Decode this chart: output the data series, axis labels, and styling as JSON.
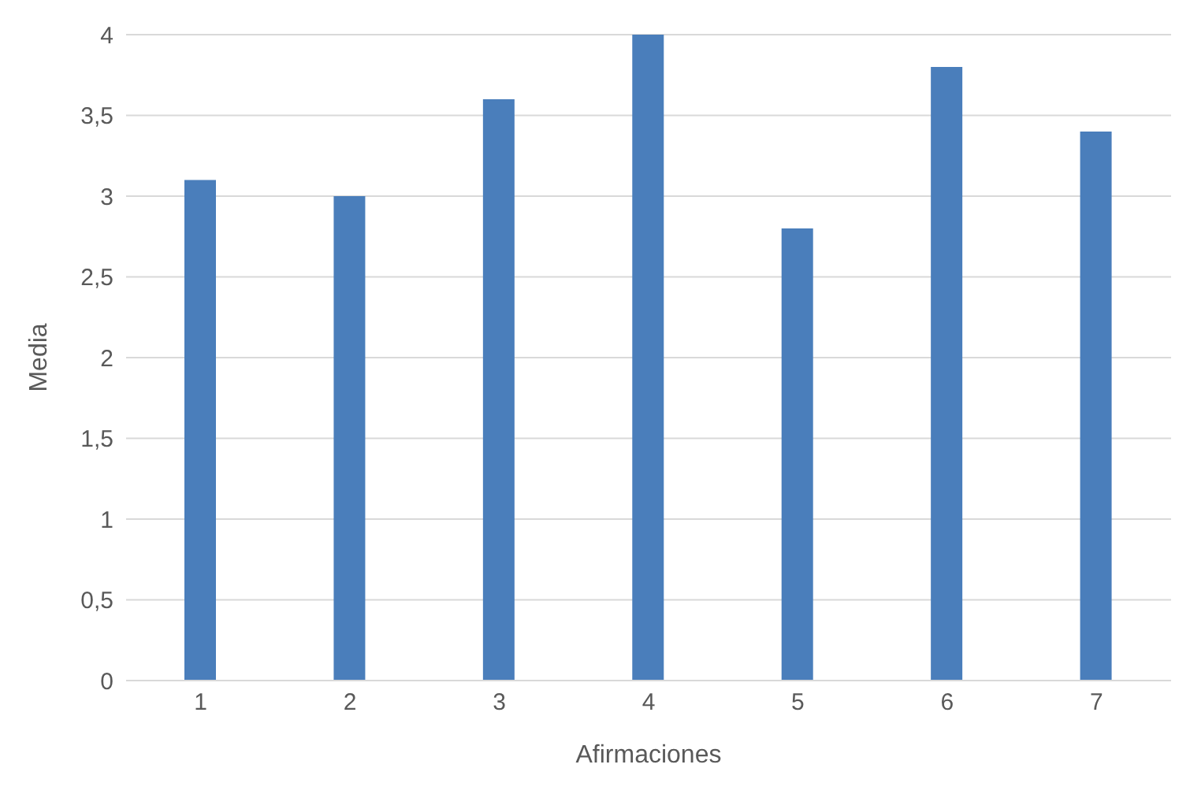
{
  "chart_data": {
    "type": "bar",
    "xlabel": "Afirmaciones",
    "ylabel": "Media",
    "categories": [
      "1",
      "2",
      "3",
      "4",
      "5",
      "6",
      "7"
    ],
    "values": [
      3.1,
      3.0,
      3.6,
      4.0,
      2.8,
      3.8,
      3.4
    ],
    "color": "#4a7ebb",
    "ylim": [
      0,
      4
    ],
    "yticks": [
      0,
      {
        "value": 0.5,
        "label": "0,5"
      },
      1,
      {
        "value": 1.5,
        "label": "1,5"
      },
      2,
      {
        "value": 2.5,
        "label": "2,5"
      },
      3,
      {
        "value": 3.5,
        "label": "3,5"
      },
      4
    ],
    "grid": "y",
    "legend": false
  }
}
